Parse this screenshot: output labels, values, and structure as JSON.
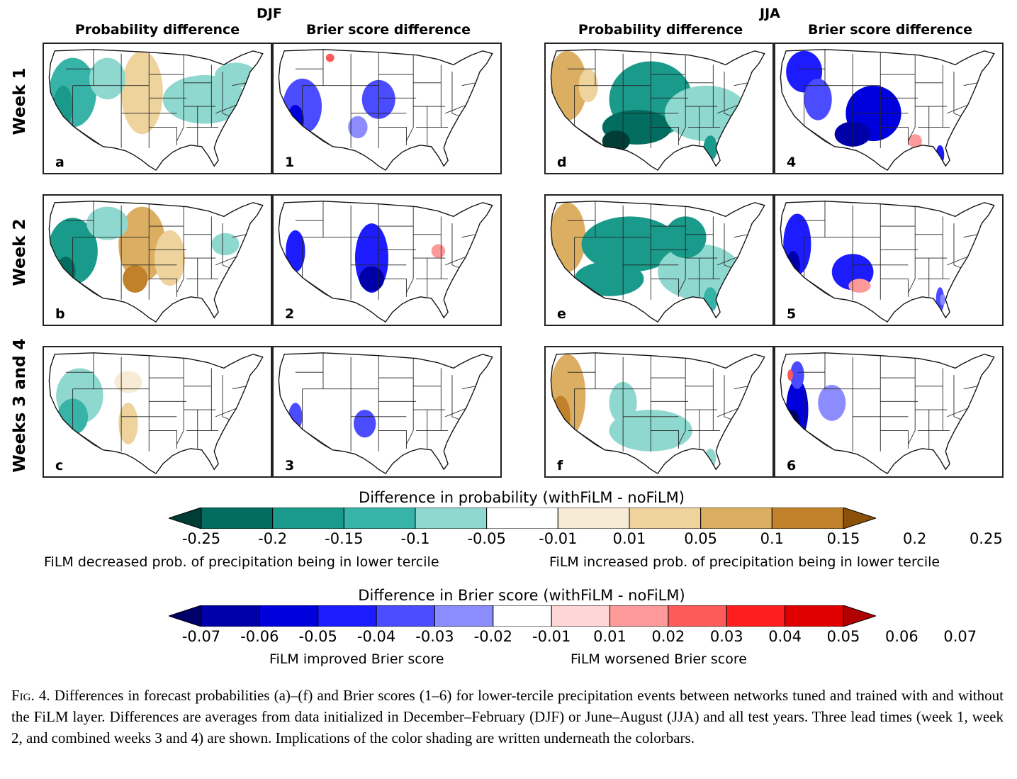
{
  "seasons": {
    "left": "DJF",
    "right": "JJA"
  },
  "column_headers": {
    "left_prob": "Probability difference",
    "left_brier": "Brier score difference",
    "right_prob": "Probability difference",
    "right_brier": "Brier score difference"
  },
  "row_labels": [
    "Week 1",
    "Week 2",
    "Weeks 3 and 4"
  ],
  "panel_labels": [
    [
      "a",
      "1",
      "d",
      "4"
    ],
    [
      "b",
      "2",
      "e",
      "5"
    ],
    [
      "c",
      "3",
      "f",
      "6"
    ]
  ],
  "colorbar_probability": {
    "title": "Difference in probability (withFiLM - noFiLM)",
    "ticks": [
      "-0.25",
      "-0.2",
      "-0.15",
      "-0.1",
      "-0.05",
      "-0.01",
      "0.01",
      "0.05",
      "0.1",
      "0.15",
      "0.2",
      "0.25"
    ],
    "colors": [
      "#013d35",
      "#016c5f",
      "#1a9a8a",
      "#38b3a8",
      "#8fd8cf",
      "#ffffff",
      "#f7ebd5",
      "#eed39d",
      "#dcae62",
      "#c0812a",
      "#8c5108"
    ],
    "left_note": "FiLM decreased prob. of precipitation being in lower tercile",
    "right_note": "FiLM increased prob. of precipitation being in lower tercile"
  },
  "colorbar_brier": {
    "title": "Difference in Brier score (withFiLM - noFiLM)",
    "ticks": [
      "-0.07",
      "-0.06",
      "-0.05",
      "-0.04",
      "-0.03",
      "-0.02",
      "-0.01",
      "0.01",
      "0.02",
      "0.03",
      "0.04",
      "0.05",
      "0.06",
      "0.07"
    ],
    "colors": [
      "#00006b",
      "#0000a8",
      "#0000dc",
      "#1c1cff",
      "#4b4bff",
      "#8c8cff",
      "#ffffff",
      "#ffd6d6",
      "#ff9a9a",
      "#ff5a5a",
      "#ff1e1e",
      "#e00000",
      "#b00000"
    ],
    "left_note": "FiLM improved Brier score",
    "right_note": "FiLM worsened Brier score"
  },
  "caption": {
    "fig_label": "Fig. 4.",
    "text": "Differences in forecast probabilities (a)–(f) and Brier scores (1–6) for lower-tercile precipitation events between networks tuned and trained with and without the FiLM layer. Differences are averages from data initialized in December–February (DJF) or June–August (JJA) and all test years. Three lead times (week 1, week 2, and combined weeks 3 and 4) are shown. Implications of the color shading are written underneath the colorbars."
  }
}
